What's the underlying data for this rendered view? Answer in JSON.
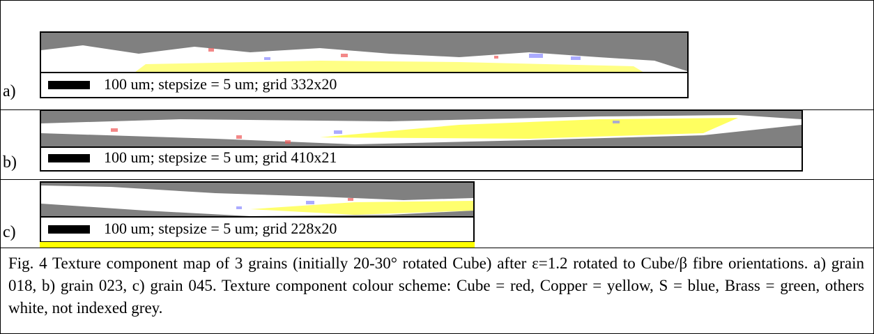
{
  "panels": [
    {
      "label": "a)",
      "scale_caption": "100 um; stepsize = 5 um; grid 332x20"
    },
    {
      "label": "b)",
      "scale_caption": "100 um; stepsize = 5 um; grid 410x21"
    },
    {
      "label": "c)",
      "scale_caption": "100 um; stepsize = 5 um; grid 228x20"
    }
  ],
  "caption": "Fig. 4 Texture component map of 3 grains (initially 20-30° rotated Cube) after ε=1.2 rotated to Cube/β fibre orientations. a) grain 018, b) grain 023, c) grain 045. Texture component colour scheme: Cube = red, Copper = yellow, S = blue, Brass = green, others white, not indexed grey."
}
